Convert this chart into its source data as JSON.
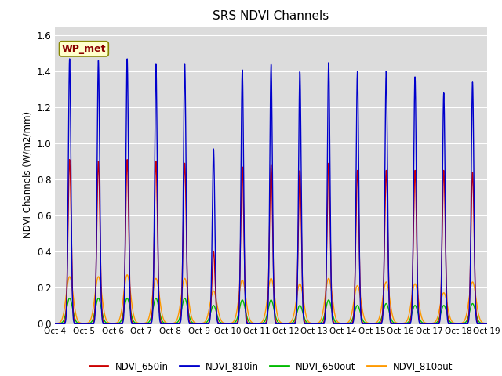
{
  "title": "SRS NDVI Channels",
  "ylabel": "NDVI Channels (W/m2/mm)",
  "ylim": [
    0,
    1.65
  ],
  "yticks": [
    0.0,
    0.2,
    0.4,
    0.6,
    0.8,
    1.0,
    1.2,
    1.4,
    1.6
  ],
  "bg_color": "#dcdcdc",
  "annotation": "WP_met",
  "legend": [
    "NDVI_650in",
    "NDVI_810in",
    "NDVI_650out",
    "NDVI_810out"
  ],
  "line_colors": [
    "#cc0000",
    "#0000cc",
    "#00bb00",
    "#ff9900"
  ],
  "peak_650in": [
    0.91,
    0.9,
    0.91,
    0.9,
    0.89,
    0.4,
    0.87,
    0.88,
    0.85,
    0.89,
    0.85,
    0.85,
    0.85,
    0.85,
    0.84
  ],
  "peak_810in": [
    1.47,
    1.46,
    1.47,
    1.44,
    1.44,
    0.97,
    1.41,
    1.44,
    1.4,
    1.45,
    1.4,
    1.4,
    1.37,
    1.28,
    1.34
  ],
  "peak_650out": [
    0.14,
    0.14,
    0.14,
    0.14,
    0.14,
    0.1,
    0.13,
    0.13,
    0.1,
    0.13,
    0.1,
    0.11,
    0.1,
    0.1,
    0.11
  ],
  "peak_810out": [
    0.26,
    0.26,
    0.27,
    0.25,
    0.25,
    0.18,
    0.24,
    0.25,
    0.22,
    0.25,
    0.21,
    0.23,
    0.22,
    0.17,
    0.23
  ],
  "xticklabels": [
    "Oct 4",
    "Oct 5",
    "Oct 6",
    "Oct 7",
    "Oct 8",
    "Oct 9",
    "Oct 10",
    "Oct 11",
    "Oct 12",
    "Oct 13",
    "Oct 14",
    "Oct 15",
    "Oct 16",
    "Oct 17",
    "Oct 18",
    "Oct 19"
  ],
  "n_days": 15,
  "pts_per_day": 200
}
